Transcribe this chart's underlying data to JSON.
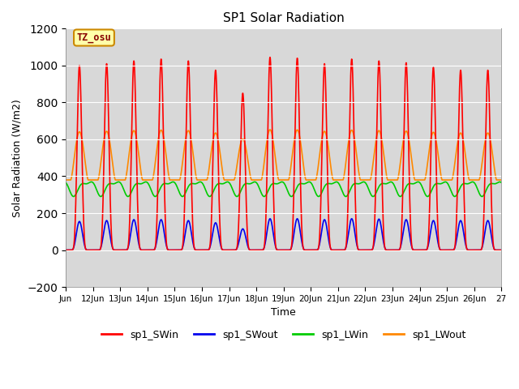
{
  "title": "SP1 Solar Radiation",
  "xlabel": "Time",
  "ylabel": "Solar Radiation (W/m2)",
  "ylim": [
    -200,
    1200
  ],
  "yticks": [
    -200,
    0,
    200,
    400,
    600,
    800,
    1000,
    1200
  ],
  "xtick_labels": [
    "Jun",
    "12Jun",
    "13Jun",
    "14Jun",
    "15Jun",
    "16Jun",
    "17Jun",
    "18Jun",
    "19Jun",
    "20Jun",
    "21Jun",
    "22Jun",
    "23Jun",
    "24Jun",
    "25Jun",
    "26Jun",
    "27"
  ],
  "tz_label": "TZ_osu",
  "series": {
    "sp1_SWin": {
      "color": "#ff0000",
      "lw": 1.2
    },
    "sp1_SWout": {
      "color": "#0000ee",
      "lw": 1.2
    },
    "sp1_LWin": {
      "color": "#00cc00",
      "lw": 1.2
    },
    "sp1_LWout": {
      "color": "#ff8800",
      "lw": 1.2
    }
  },
  "bg_color": "#d8d8d8",
  "fig_bg": "#ffffff",
  "SWin_peaks": [
    1000,
    1010,
    1025,
    1035,
    1025,
    975,
    850,
    1045,
    1040,
    1010,
    1035,
    1025,
    1015,
    990,
    975
  ],
  "SWout_peaks": [
    155,
    160,
    165,
    165,
    160,
    148,
    115,
    170,
    170,
    165,
    170,
    168,
    165,
    160,
    160
  ],
  "LWin_base": 340,
  "LWin_amp": 70,
  "LWout_day_peak": 650,
  "LWout_night": 380
}
